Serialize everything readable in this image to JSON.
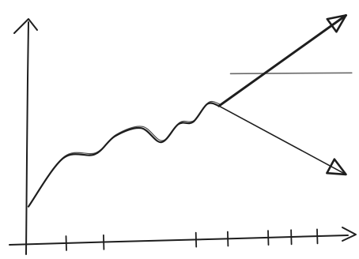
{
  "chart_data": {
    "type": "line",
    "style": "hand-drawn sketch",
    "title": "",
    "xlabel": "",
    "ylabel": "",
    "grid": false,
    "xlim": [
      0,
      10
    ],
    "ylim": [
      0,
      10
    ],
    "x_ticks": [
      1.3,
      2.6,
      5.8,
      6.9,
      8.3,
      9.1,
      10.0
    ],
    "series": [
      {
        "role": "main-trend",
        "x": [
          0.0,
          1.2,
          2.3,
          3.0,
          3.9,
          4.6,
          5.2,
          5.7,
          6.2,
          6.6
        ],
        "y": [
          1.7,
          4.1,
          4.3,
          5.2,
          5.6,
          4.9,
          5.8,
          5.9,
          6.8,
          6.7
        ]
      },
      {
        "role": "upward-projection",
        "x": [
          6.6,
          11.0
        ],
        "y": [
          6.7,
          11.2
        ],
        "arrow": "end"
      },
      {
        "role": "downward-projection",
        "x": [
          6.6,
          11.0
        ],
        "y": [
          6.7,
          3.3
        ],
        "arrow": "end"
      }
    ],
    "reference_line": {
      "y": 8.3,
      "x_start": 7.0,
      "x_end": 11.2
    },
    "colors": {
      "ink": "#1e1e1e",
      "reference": "#6a6a6a",
      "background": "#ffffff"
    }
  }
}
